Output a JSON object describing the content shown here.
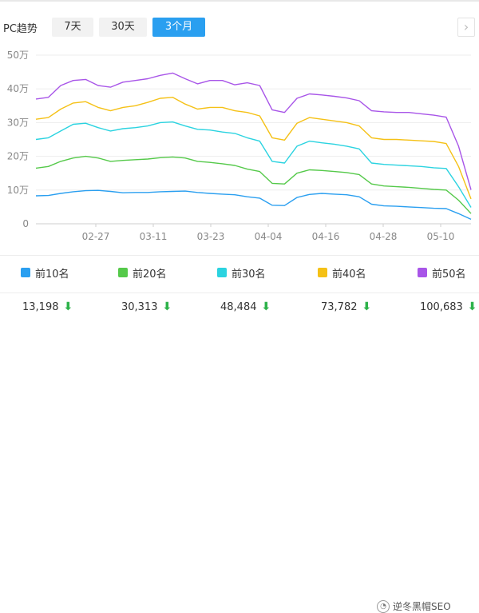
{
  "toolbar": {
    "title": "PC趋势",
    "tabs": [
      {
        "label": "7天",
        "active": false
      },
      {
        "label": "30天",
        "active": false
      },
      {
        "label": "3个月",
        "active": true
      }
    ],
    "next_icon": "chevron-right-icon"
  },
  "legend": [
    {
      "label": "前10名",
      "color": "#2a9ff0"
    },
    {
      "label": "前20名",
      "color": "#55c94a"
    },
    {
      "label": "前30名",
      "color": "#2bd3e0"
    },
    {
      "label": "前40名",
      "color": "#f5c116"
    },
    {
      "label": "前50名",
      "color": "#a855e8"
    }
  ],
  "totals": [
    {
      "value": "13,198",
      "trend": "down"
    },
    {
      "value": "30,313",
      "trend": "down"
    },
    {
      "value": "48,484",
      "trend": "down"
    },
    {
      "value": "73,782",
      "trend": "down"
    },
    {
      "value": "100,683",
      "trend": "down"
    }
  ],
  "watermark_text": "逆冬黑帽SEO",
  "chart_data": {
    "type": "line",
    "ylim": [
      0,
      500000
    ],
    "ytick_labels": [
      "0",
      "10万",
      "20万",
      "30万",
      "40万",
      "50万"
    ],
    "xtick_labels": [
      "02-27",
      "03-11",
      "03-23",
      "04-04",
      "04-16",
      "04-28",
      "05-10"
    ],
    "series": [
      {
        "name": "前10名",
        "color": "#2a9ff0",
        "values": [
          83000,
          84000,
          90000,
          95000,
          98000,
          99000,
          96000,
          92000,
          93000,
          93000,
          95000,
          96000,
          97000,
          93000,
          90000,
          88000,
          86000,
          80000,
          76000,
          55000,
          54000,
          78000,
          87000,
          90000,
          88000,
          86000,
          80000,
          58000,
          53000,
          52000,
          50000,
          48000,
          46000,
          45000,
          30000,
          13198
        ]
      },
      {
        "name": "前20名",
        "color": "#55c94a",
        "values": [
          165000,
          170000,
          185000,
          195000,
          200000,
          195000,
          185000,
          188000,
          190000,
          192000,
          196000,
          198000,
          195000,
          185000,
          182000,
          178000,
          173000,
          162000,
          155000,
          120000,
          118000,
          150000,
          160000,
          158000,
          155000,
          152000,
          146000,
          118000,
          112000,
          110000,
          108000,
          105000,
          102000,
          100000,
          70000,
          30313
        ]
      },
      {
        "name": "前30名",
        "color": "#2bd3e0",
        "values": [
          250000,
          255000,
          275000,
          295000,
          298000,
          285000,
          275000,
          282000,
          285000,
          290000,
          300000,
          302000,
          290000,
          280000,
          278000,
          272000,
          268000,
          255000,
          245000,
          185000,
          180000,
          230000,
          245000,
          240000,
          236000,
          230000,
          222000,
          180000,
          176000,
          174000,
          172000,
          170000,
          166000,
          164000,
          110000,
          48484
        ]
      },
      {
        "name": "前40名",
        "color": "#f5c116",
        "values": [
          310000,
          315000,
          340000,
          358000,
          362000,
          345000,
          335000,
          345000,
          350000,
          360000,
          372000,
          375000,
          355000,
          340000,
          345000,
          345000,
          335000,
          330000,
          320000,
          255000,
          248000,
          298000,
          315000,
          310000,
          305000,
          300000,
          290000,
          255000,
          250000,
          250000,
          248000,
          246000,
          244000,
          238000,
          170000,
          73782
        ]
      },
      {
        "name": "前50名",
        "color": "#a855e8",
        "values": [
          370000,
          375000,
          410000,
          425000,
          428000,
          410000,
          405000,
          420000,
          425000,
          430000,
          440000,
          447000,
          430000,
          415000,
          425000,
          425000,
          412000,
          418000,
          410000,
          338000,
          330000,
          372000,
          385000,
          382000,
          378000,
          373000,
          365000,
          335000,
          332000,
          330000,
          330000,
          326000,
          322000,
          316000,
          230000,
          100683
        ]
      }
    ]
  }
}
